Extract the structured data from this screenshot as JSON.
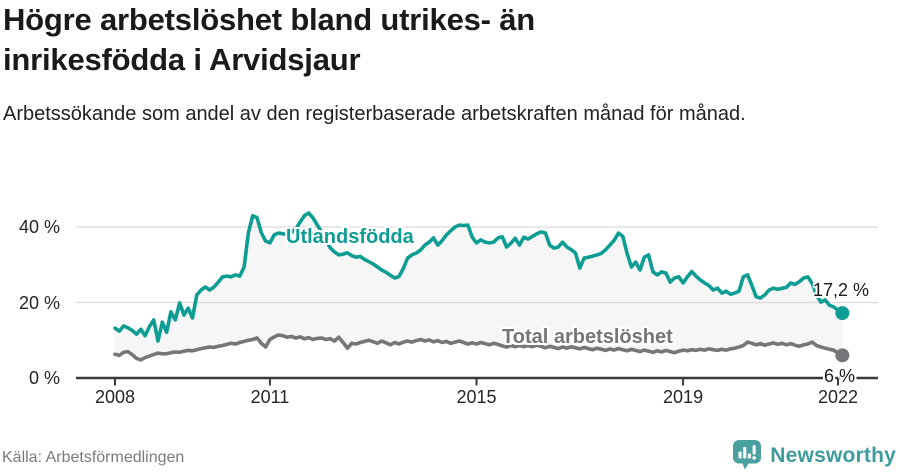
{
  "header": {
    "title": "Högre arbetslöshet bland utrikes- än inrikesfödda i Arvidsjaur",
    "subtitle": "Arbetssökande som andel av den registerbaserade arbetskraften månad för månad."
  },
  "footer": {
    "source": "Källa: Arbetsförmedlingen",
    "brand": "Newsworthy",
    "brand_color": "#4AA0A0",
    "brand_text_color": "#3F9C9C"
  },
  "colors": {
    "axis": "#3b3b3b",
    "grid": "#dbdbdb",
    "fill_between": "#f6f6f6"
  },
  "chart_data": {
    "type": "line",
    "title": "Högre arbetslöshet bland utrikes- än inrikesfödda i Arvidsjaur",
    "xlabel": "",
    "ylabel": "Arbetssökande som andel av den registerbaserade arbetskraften",
    "x_unit": "month",
    "x_start": "2008-01",
    "x_end": "2022-02",
    "ylim": [
      0,
      45
    ],
    "grid": true,
    "legend_position": "inline-labels",
    "x_tick_years": [
      2008,
      2011,
      2015,
      2019,
      2022
    ],
    "x_tick_labels": [
      "2008",
      "2011",
      "2015",
      "2019",
      "2022"
    ],
    "y_tick_values": [
      0,
      20,
      40
    ],
    "y_tick_labels": [
      "0 %",
      "20 %",
      "40 %"
    ],
    "fill_between_series": true,
    "series": [
      {
        "name": "Utlandsfödda",
        "color": "#0E9D93",
        "end_label": "17,2 %",
        "end_value": 17.2,
        "values": [
          13.2,
          12.4,
          13.8,
          13.3,
          12.6,
          11.6,
          12.9,
          11.2,
          13.6,
          15.4,
          9.8,
          14.8,
          12.1,
          17.5,
          15.4,
          19.9,
          16.7,
          18.5,
          15.9,
          22.0,
          23.3,
          24.1,
          23.3,
          24.1,
          25.4,
          26.8,
          27.0,
          26.8,
          27.3,
          27.0,
          29.4,
          38.5,
          43.0,
          42.5,
          38.5,
          36.3,
          35.8,
          37.9,
          38.4,
          38.2,
          38.0,
          38.5,
          39.5,
          41.3,
          43.0,
          43.7,
          42.4,
          40.5,
          38.7,
          36.5,
          34.5,
          33.4,
          32.6,
          32.8,
          33.2,
          32.4,
          32.0,
          32.2,
          31.4,
          30.8,
          30.2,
          29.4,
          28.6,
          28.0,
          27.2,
          26.5,
          26.9,
          29.0,
          31.8,
          32.6,
          33.1,
          33.9,
          35.2,
          36.0,
          37.1,
          35.2,
          36.4,
          37.9,
          39.0,
          40.0,
          40.5,
          40.4,
          40.5,
          37.3,
          35.8,
          36.6,
          36.0,
          35.8,
          36.0,
          37.1,
          37.4,
          34.7,
          35.7,
          37.0,
          35.2,
          37.3,
          36.8,
          37.5,
          38.2,
          38.7,
          38.4,
          35.2,
          34.4,
          34.7,
          36.0,
          34.7,
          34.0,
          33.1,
          29.1,
          31.8,
          32.0,
          32.3,
          32.6,
          33.0,
          34.0,
          35.2,
          36.5,
          38.4,
          37.5,
          33.0,
          29.4,
          30.7,
          28.6,
          32.0,
          32.6,
          28.1,
          27.3,
          28.1,
          27.8,
          25.4,
          26.5,
          26.8,
          25.2,
          26.8,
          28.2,
          27.0,
          26.0,
          25.2,
          24.5,
          23.3,
          23.8,
          22.5,
          23.0,
          22.2,
          22.5,
          23.0,
          26.8,
          27.3,
          24.5,
          21.5,
          21.2,
          22.0,
          23.3,
          23.8,
          23.5,
          23.8,
          24.0,
          25.2,
          24.8,
          25.5,
          26.5,
          26.8,
          25.0,
          22.0,
          20.1,
          20.7,
          19.3,
          18.8,
          18.0,
          17.2
        ]
      },
      {
        "name": "Total arbetslöshet",
        "color": "#767579",
        "end_label": "6 %",
        "end_value": 6.0,
        "values": [
          6.3,
          6.0,
          6.8,
          7.0,
          6.2,
          5.2,
          4.8,
          5.4,
          5.8,
          6.2,
          6.6,
          6.4,
          6.4,
          6.7,
          6.9,
          6.8,
          7.1,
          7.3,
          7.2,
          7.5,
          7.8,
          8.0,
          8.2,
          8.1,
          8.4,
          8.6,
          8.9,
          9.2,
          9.0,
          9.4,
          9.7,
          10.0,
          10.2,
          10.6,
          9.2,
          8.2,
          10.2,
          10.9,
          11.4,
          11.2,
          10.8,
          11.0,
          10.6,
          10.9,
          10.4,
          10.7,
          10.2,
          10.5,
          10.6,
          10.2,
          10.4,
          9.8,
          10.8,
          9.4,
          7.9,
          9.2,
          9.0,
          9.4,
          9.7,
          10.0,
          9.6,
          9.2,
          9.8,
          9.3,
          8.8,
          9.4,
          9.0,
          9.5,
          9.8,
          9.5,
          9.9,
          10.2,
          9.8,
          10.1,
          9.6,
          9.9,
          9.4,
          9.7,
          9.2,
          9.5,
          9.8,
          9.4,
          9.0,
          9.3,
          9.0,
          9.4,
          9.1,
          8.8,
          9.2,
          8.9,
          8.5,
          8.2,
          8.6,
          8.3,
          8.6,
          8.3,
          8.6,
          8.3,
          8.7,
          8.4,
          8.0,
          8.4,
          8.1,
          7.8,
          8.2,
          7.9,
          8.3,
          8.0,
          7.7,
          8.1,
          7.8,
          7.5,
          7.9,
          7.6,
          7.3,
          7.7,
          7.4,
          7.8,
          7.5,
          7.2,
          7.6,
          7.3,
          7.0,
          7.4,
          7.1,
          6.8,
          7.2,
          6.9,
          7.3,
          7.0,
          6.7,
          7.1,
          7.4,
          7.2,
          7.5,
          7.3,
          7.6,
          7.4,
          7.7,
          7.5,
          7.3,
          7.6,
          7.4,
          7.7,
          7.9,
          8.2,
          8.6,
          9.5,
          9.2,
          8.8,
          9.1,
          8.7,
          9.0,
          9.3,
          8.9,
          9.2,
          8.8,
          9.1,
          8.7,
          8.4,
          8.8,
          9.0,
          9.5,
          8.6,
          8.2,
          7.9,
          7.6,
          7.4,
          6.6,
          6.0
        ]
      }
    ]
  }
}
